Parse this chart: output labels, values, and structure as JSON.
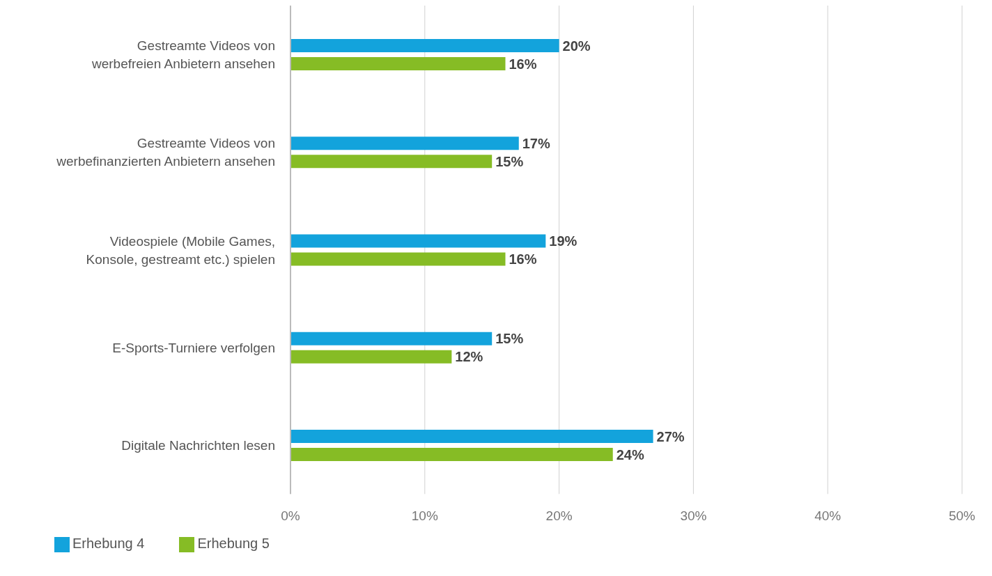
{
  "chart_data": {
    "type": "bar",
    "orientation": "horizontal",
    "categories": [
      "Gestreamte Videos von werbefreien Anbietern ansehen",
      "Gestreamte Videos von werbefinanzierten Anbietern ansehen",
      "Videospiele (Mobile Games, Konsole, gestreamt etc.) spielen",
      "E-Sports-Turniere verfolgen",
      "Digitale Nachrichten lesen"
    ],
    "series": [
      {
        "name": "Erhebung 4",
        "color": "#13a3dc",
        "values": [
          20,
          17,
          19,
          15,
          27
        ],
        "value_labels": [
          "20%",
          "17%",
          "19%",
          "15%",
          "27%"
        ]
      },
      {
        "name": "Erhebung 5",
        "color": "#86bc25",
        "values": [
          16,
          15,
          16,
          12,
          24
        ],
        "value_labels": [
          "16%",
          "15%",
          "16%",
          "12%",
          "24%"
        ]
      }
    ],
    "xlim": [
      0,
      50
    ],
    "xticks": [
      {
        "value": 0,
        "label": "0%"
      },
      {
        "value": 10,
        "label": "10%"
      },
      {
        "value": 20,
        "label": "20%"
      },
      {
        "value": 30,
        "label": "30%"
      },
      {
        "value": 40,
        "label": "40%"
      },
      {
        "value": 50,
        "label": "50%"
      }
    ],
    "grid": "x",
    "legend": "bottom left"
  }
}
